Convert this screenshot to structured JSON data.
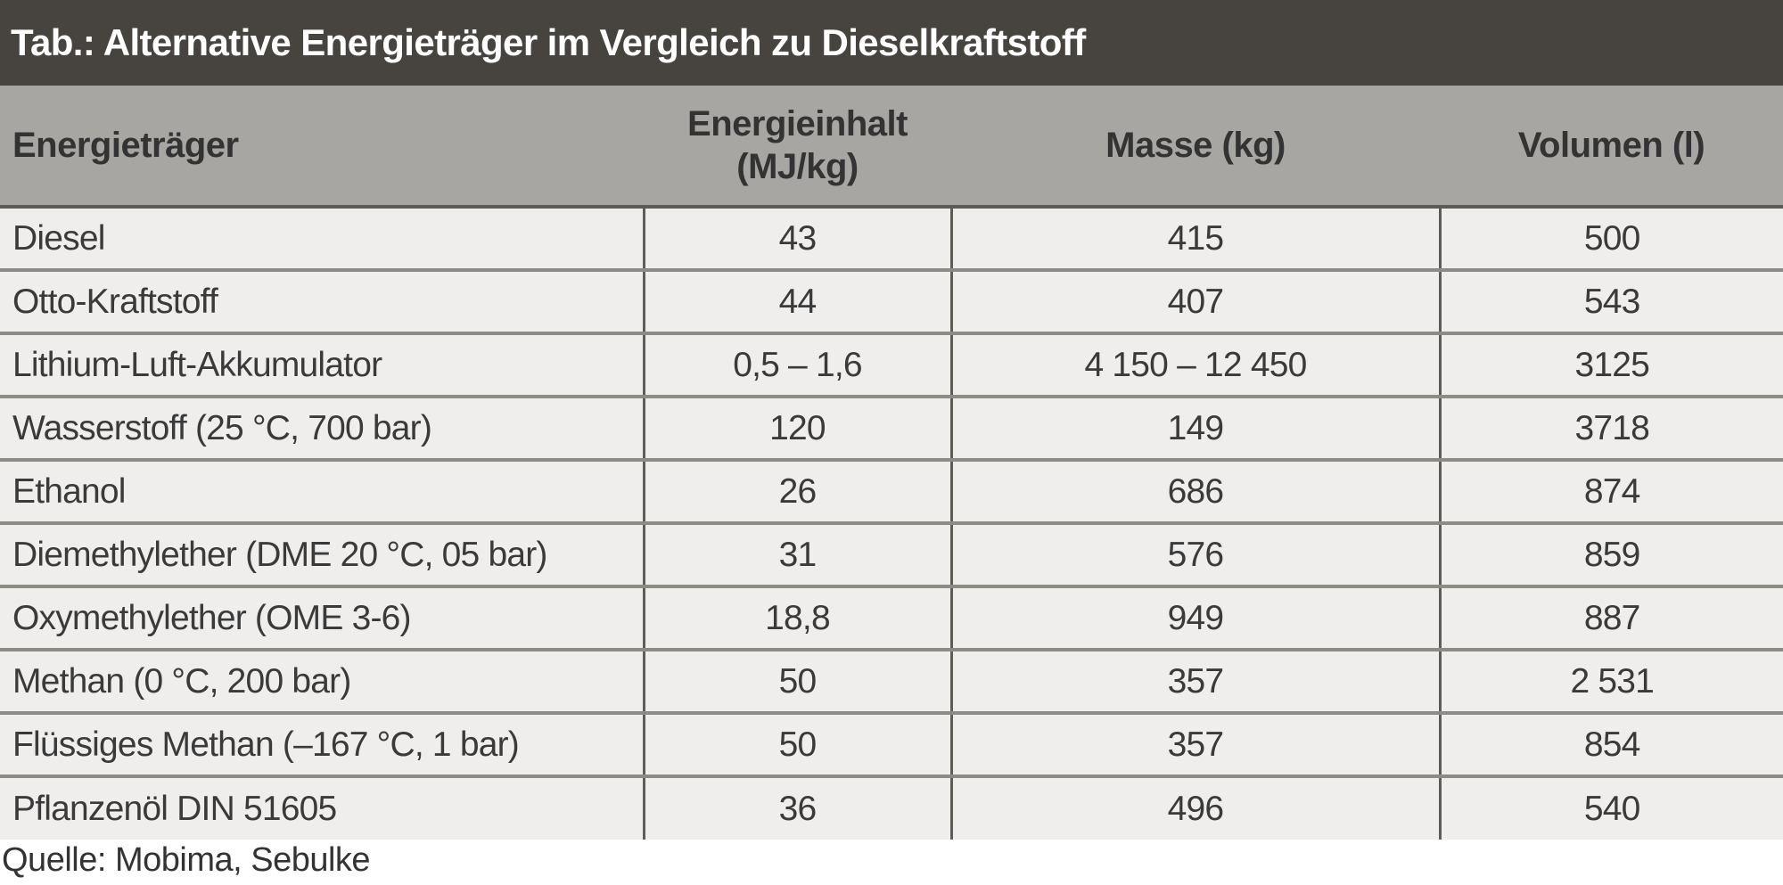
{
  "title": "Tab.: Alternative Energieträger im Vergleich zu Dieselkraftstoff",
  "table": {
    "headers": [
      "Energieträger",
      "Energieinhalt",
      "(MJ/kg)",
      "Masse (kg)",
      "Volumen (l)"
    ],
    "rows": [
      [
        "Diesel",
        "43",
        "415",
        "500"
      ],
      [
        "Otto-Kraftstoff",
        "44",
        "407",
        "543"
      ],
      [
        "Lithium-Luft-Akkumulator",
        "0,5 – 1,6",
        "4 150 – 12 450",
        "3125"
      ],
      [
        "Wasserstoff (25 °C, 700 bar)",
        "120",
        "149",
        "3718"
      ],
      [
        "Ethanol",
        "26",
        "686",
        "874"
      ],
      [
        "Diemethylether (DME 20 °C, 05 bar)",
        "31",
        "576",
        "859"
      ],
      [
        "Oxymethylether (OME 3-6)",
        "18,8",
        "949",
        "887"
      ],
      [
        "Methan (0 °C, 200 bar)",
        "50",
        "357",
        "2 531"
      ],
      [
        "Flüssiges Methan (–167 °C, 1 bar)",
        "50",
        "357",
        "854"
      ],
      [
        "Pflanzenöl DIN 51605",
        "36",
        "496",
        "540"
      ]
    ]
  },
  "source": "Quelle: Mobima, Sebulke",
  "colors": {
    "title_background": "#47443f",
    "header_background": "#a8a6a2",
    "row_background": "#efeeed"
  }
}
